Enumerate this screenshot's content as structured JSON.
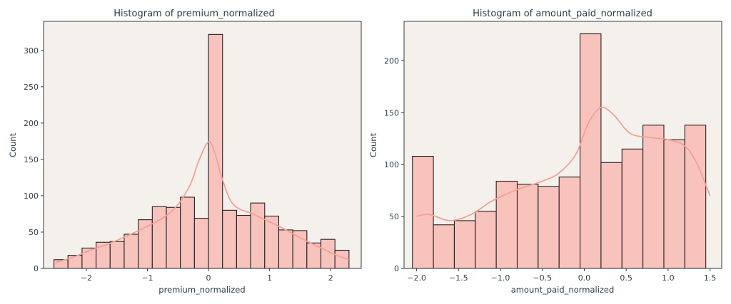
{
  "chart_data": [
    {
      "type": "bar",
      "title": "Histogram of premium_normalized",
      "xlabel": "premium_normalized",
      "ylabel": "Count",
      "xlim": [
        -2.7,
        2.5
      ],
      "ylim": [
        0,
        340
      ],
      "xticks": [
        -2,
        -1,
        0,
        1,
        2
      ],
      "xtick_labels": [
        "−2",
        "−1",
        "0",
        "1",
        "2"
      ],
      "yticks": [
        0,
        50,
        100,
        150,
        200,
        250,
        300
      ],
      "yticks_labels": [
        "0",
        "50",
        "100",
        "150",
        "200",
        "250",
        "300"
      ],
      "bin_edges": [
        -2.53,
        -2.3,
        -2.07,
        -1.84,
        -1.61,
        -1.38,
        -1.15,
        -0.92,
        -0.69,
        -0.46,
        -0.23,
        0.0,
        0.23,
        0.46,
        0.69,
        0.92,
        1.15,
        1.38,
        1.61,
        1.84,
        2.07,
        2.3
      ],
      "values": [
        12,
        18,
        28,
        36,
        37,
        47,
        67,
        85,
        84,
        98,
        69,
        322,
        80,
        73,
        90,
        72,
        53,
        52,
        35,
        40,
        25
      ],
      "kde": {
        "x": [
          -2.5,
          -2.2,
          -1.9,
          -1.6,
          -1.3,
          -1.0,
          -0.7,
          -0.5,
          -0.3,
          -0.15,
          0.0,
          0.1,
          0.2,
          0.35,
          0.5,
          0.7,
          0.9,
          1.2,
          1.5,
          1.8,
          2.1,
          2.3
        ],
        "y": [
          8,
          16,
          26,
          35,
          46,
          58,
          72,
          88,
          115,
          150,
          174,
          160,
          130,
          95,
          82,
          76,
          68,
          56,
          42,
          30,
          18,
          12
        ]
      },
      "grid": false,
      "legend": "none",
      "colors": {
        "bar_fill": "#f8c3bd",
        "bar_edge": "#2a1f1f",
        "kde": "#f4a096",
        "background": "#f4f1ec"
      }
    },
    {
      "type": "bar",
      "title": "Histogram of amount_paid_normalized",
      "xlabel": "amount_paid_normalized",
      "ylabel": "Count",
      "xlim": [
        -2.15,
        1.64
      ],
      "ylim": [
        0,
        238
      ],
      "xticks": [
        -2.0,
        -1.5,
        -1.0,
        -0.5,
        0.0,
        0.5,
        1.0,
        1.5
      ],
      "xtick_labels": [
        "−2.0",
        "−1.5",
        "−1.0",
        "−0.5",
        "0.0",
        "0.5",
        "1.0",
        "1.5"
      ],
      "yticks": [
        0,
        50,
        100,
        150,
        200
      ],
      "yticks_labels": [
        "0",
        "50",
        "100",
        "150",
        "200"
      ],
      "bin_edges": [
        -2.05,
        -1.8,
        -1.55,
        -1.3,
        -1.05,
        -0.8,
        -0.55,
        -0.3,
        -0.05,
        0.2,
        0.45,
        0.7,
        0.95,
        1.2,
        1.45
      ],
      "values": [
        108,
        42,
        46,
        55,
        84,
        81,
        79,
        88,
        226,
        102,
        115,
        138,
        124,
        138
      ],
      "kde": {
        "x": [
          -2.0,
          -1.85,
          -1.6,
          -1.35,
          -1.1,
          -0.8,
          -0.5,
          -0.3,
          -0.1,
          0.05,
          0.2,
          0.35,
          0.55,
          0.8,
          1.0,
          1.2,
          1.35,
          1.5
        ],
        "y": [
          50,
          52,
          46,
          52,
          65,
          76,
          84,
          92,
          110,
          140,
          155,
          148,
          130,
          126,
          124,
          118,
          100,
          70
        ]
      },
      "grid": false,
      "legend": "none",
      "colors": {
        "bar_fill": "#f8c3bd",
        "bar_edge": "#2a1f1f",
        "kde": "#f4a096",
        "background": "#f4f1ec"
      }
    }
  ]
}
